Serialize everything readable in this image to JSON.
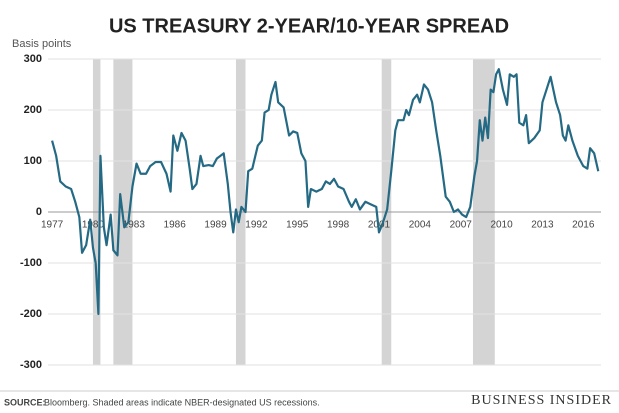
{
  "chart_data": {
    "type": "line",
    "title": "US TREASURY 2-YEAR/10-YEAR SPREAD",
    "y_label": "Basis points",
    "color": "#256a84",
    "recession_color": "#d4d4d4",
    "grid": true,
    "xlim": [
      1976.7,
      2017.3
    ],
    "ylim": [
      -300,
      300
    ],
    "yticks": [
      -300,
      -200,
      -100,
      0,
      100,
      200,
      300
    ],
    "xticks": [
      1977,
      1980,
      1983,
      1986,
      1989,
      1992,
      1995,
      1998,
      2001,
      2004,
      2007,
      2010,
      2013,
      2016
    ],
    "recessions": [
      [
        1980.0,
        1980.55
      ],
      [
        1981.5,
        1982.9
      ],
      [
        1990.5,
        1991.2
      ],
      [
        2001.2,
        2001.9
      ],
      [
        2007.9,
        2009.5
      ]
    ],
    "x": [
      1977.0,
      1977.3,
      1977.6,
      1978.0,
      1978.4,
      1978.7,
      1979.0,
      1979.2,
      1979.5,
      1979.8,
      1980.0,
      1980.2,
      1980.4,
      1980.55,
      1980.8,
      1981.0,
      1981.3,
      1981.5,
      1981.8,
      1982.0,
      1982.3,
      1982.6,
      1982.9,
      1983.2,
      1983.5,
      1983.9,
      1984.2,
      1984.6,
      1985.0,
      1985.4,
      1985.7,
      1985.9,
      1986.2,
      1986.5,
      1986.8,
      1987.1,
      1987.3,
      1987.6,
      1987.9,
      1988.1,
      1988.5,
      1988.8,
      1989.1,
      1989.6,
      1989.9,
      1990.1,
      1990.3,
      1990.5,
      1990.7,
      1990.9,
      1991.2,
      1991.4,
      1991.7,
      1992.1,
      1992.4,
      1992.6,
      1992.9,
      1993.1,
      1993.4,
      1993.6,
      1994.0,
      1994.4,
      1994.7,
      1995.0,
      1995.3,
      1995.6,
      1995.8,
      1996.0,
      1996.4,
      1996.8,
      1997.1,
      1997.4,
      1997.7,
      1998.0,
      1998.4,
      1998.8,
      1999.0,
      1999.3,
      1999.6,
      2000.0,
      2000.4,
      2000.8,
      2001.0,
      2001.3,
      2001.6,
      2001.9,
      2002.2,
      2002.4,
      2002.8,
      2003.0,
      2003.2,
      2003.5,
      2003.8,
      2004.0,
      2004.3,
      2004.6,
      2004.9,
      2005.2,
      2005.5,
      2005.9,
      2006.2,
      2006.5,
      2006.8,
      2007.1,
      2007.4,
      2007.7,
      2008.0,
      2008.2,
      2008.4,
      2008.6,
      2008.8,
      2009.0,
      2009.2,
      2009.4,
      2009.6,
      2009.8,
      2010.1,
      2010.4,
      2010.6,
      2010.9,
      2011.1,
      2011.3,
      2011.6,
      2011.8,
      2012.0,
      2012.4,
      2012.8,
      2013.0,
      2013.3,
      2013.6,
      2014.0,
      2014.3,
      2014.5,
      2014.7,
      2014.9,
      2015.2,
      2015.6,
      2016.0,
      2016.3,
      2016.5,
      2016.8,
      2017.1
    ],
    "values": [
      140,
      110,
      60,
      50,
      45,
      20,
      -10,
      -80,
      -65,
      -15,
      -70,
      -100,
      -200,
      110,
      -30,
      -65,
      -5,
      -75,
      -85,
      35,
      -30,
      -20,
      50,
      95,
      75,
      75,
      90,
      98,
      98,
      75,
      40,
      150,
      120,
      155,
      140,
      85,
      45,
      55,
      110,
      90,
      92,
      90,
      105,
      115,
      55,
      0,
      -40,
      5,
      -20,
      10,
      0,
      80,
      85,
      130,
      140,
      195,
      200,
      230,
      255,
      215,
      205,
      150,
      158,
      155,
      115,
      100,
      10,
      45,
      40,
      45,
      60,
      55,
      65,
      50,
      45,
      20,
      10,
      25,
      5,
      20,
      15,
      10,
      -40,
      -20,
      5,
      80,
      160,
      180,
      180,
      200,
      190,
      220,
      230,
      215,
      250,
      240,
      215,
      160,
      110,
      30,
      20,
      0,
      5,
      -5,
      -10,
      10,
      70,
      100,
      180,
      140,
      185,
      145,
      240,
      235,
      270,
      280,
      240,
      210,
      270,
      265,
      270,
      175,
      170,
      190,
      135,
      145,
      160,
      215,
      240,
      265,
      215,
      190,
      150,
      140,
      170,
      140,
      110,
      90,
      85,
      125,
      115,
      80
    ]
  },
  "source_label": "SOURCE:",
  "source": "Bloomberg. Shaded areas indicate NBER-designated US recessions.",
  "brand": "BUSINESS INSIDER"
}
